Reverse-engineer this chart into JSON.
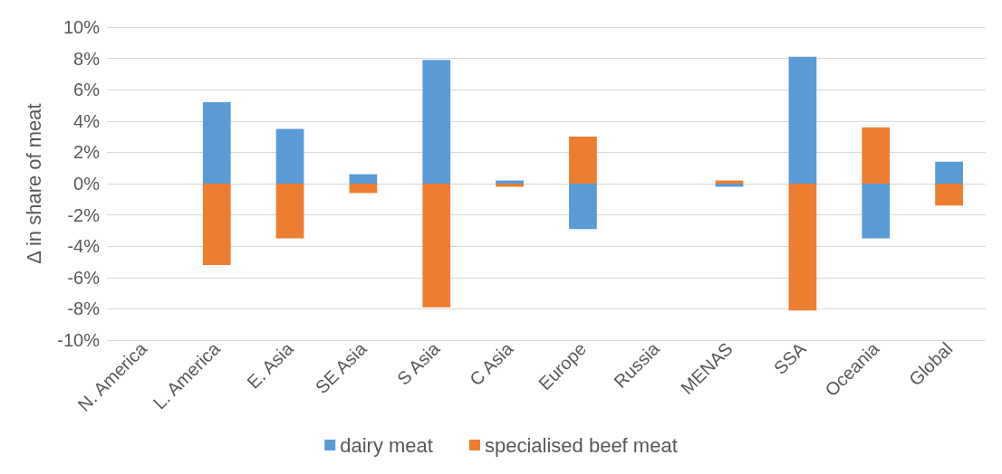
{
  "chart_data": {
    "type": "bar",
    "stacked": true,
    "ylabel": "Δ in share of meat",
    "categories": [
      "N. America",
      "L. America",
      "E. Asia",
      "SE Asia",
      "S Asia",
      "C Asia",
      "Europe",
      "Russia",
      "MENAS",
      "SSA",
      "Oceania",
      "Global"
    ],
    "series": [
      {
        "name": "dairy meat",
        "color": "#5b9bd5",
        "values": [
          0,
          5.2,
          3.5,
          0.6,
          7.9,
          0.2,
          -2.9,
          0,
          -0.2,
          8.1,
          -3.5,
          1.4
        ]
      },
      {
        "name": "specialised beef meat",
        "color": "#ed7d31",
        "values": [
          0,
          -5.2,
          -3.5,
          -0.6,
          -7.9,
          -0.2,
          3.0,
          0,
          0.2,
          -8.1,
          3.6,
          -1.4
        ]
      }
    ],
    "ylim": [
      -10,
      10
    ],
    "yticks": [
      {
        "value": -10,
        "label": "-10%"
      },
      {
        "value": -8,
        "label": "-8%"
      },
      {
        "value": -6,
        "label": "-6%"
      },
      {
        "value": -4,
        "label": "-4%"
      },
      {
        "value": -2,
        "label": "-2%"
      },
      {
        "value": 0,
        "label": "0%"
      },
      {
        "value": 2,
        "label": "2%"
      },
      {
        "value": 4,
        "label": "4%"
      },
      {
        "value": 6,
        "label": "6%"
      },
      {
        "value": 8,
        "label": "8%"
      },
      {
        "value": 10,
        "label": "10%"
      }
    ],
    "grid": "y",
    "legend": "bottom"
  }
}
